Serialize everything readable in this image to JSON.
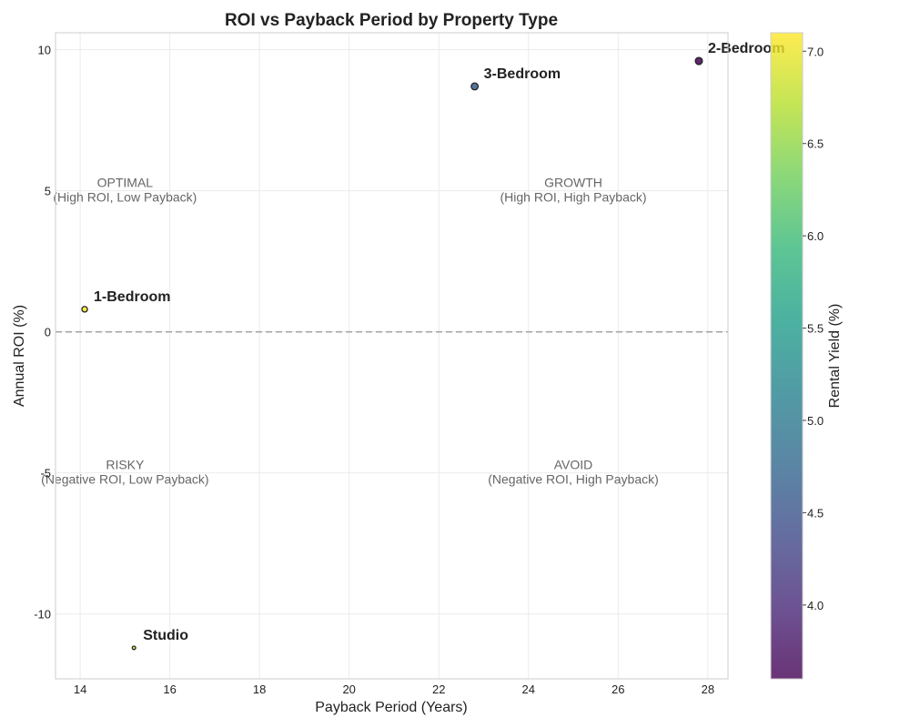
{
  "chart_data": {
    "type": "scatter",
    "title": "ROI vs Payback Period by Property Type",
    "xlabel": "Payback Period (Years)",
    "ylabel": "Annual ROI (%)",
    "xlim": [
      13.45,
      28.45
    ],
    "ylim": [
      -12.3,
      10.6
    ],
    "xticks": [
      14,
      16,
      18,
      20,
      22,
      24,
      26,
      28
    ],
    "yticks": [
      -10,
      -5,
      0,
      5,
      10
    ],
    "grid": true,
    "reference_line": {
      "y": 0,
      "style": "dashed"
    },
    "points": [
      {
        "label": "1-Bedroom",
        "x": 14.1,
        "y": 0.8,
        "rental_yield": 7.1
      },
      {
        "label": "3-Bedroom",
        "x": 22.8,
        "y": 8.7,
        "rental_yield": 4.6
      },
      {
        "label": "2-Bedroom",
        "x": 27.8,
        "y": 9.6,
        "rental_yield": 3.6
      },
      {
        "label": "Studio",
        "x": 15.2,
        "y": -11.2,
        "rental_yield": 6.9
      }
    ],
    "quadrant_labels": [
      {
        "title": "OPTIMAL",
        "subtitle": "(High ROI, Low Payback)",
        "x": 15.0,
        "y": 5.0
      },
      {
        "title": "GROWTH",
        "subtitle": "(High ROI, High Payback)",
        "x": 25.0,
        "y": 5.0
      },
      {
        "title": "RISKY",
        "subtitle": "(Negative ROI, Low Payback)",
        "x": 15.0,
        "y": -5.0
      },
      {
        "title": "AVOID",
        "subtitle": "(Negative ROI, High Payback)",
        "x": 25.0,
        "y": -5.0
      }
    ],
    "colorbar": {
      "label": "Rental Yield (%)",
      "range": [
        3.6,
        7.1
      ],
      "ticks": [
        "4.0",
        "4.5",
        "5.0",
        "5.5",
        "6.0",
        "6.5",
        "7.0"
      ],
      "colormap": "viridis",
      "stops": [
        "#440154",
        "#482878",
        "#3e4989",
        "#31688e",
        "#26828e",
        "#1f9e89",
        "#35b779",
        "#6ece58",
        "#b5de2b",
        "#fde725"
      ]
    }
  }
}
